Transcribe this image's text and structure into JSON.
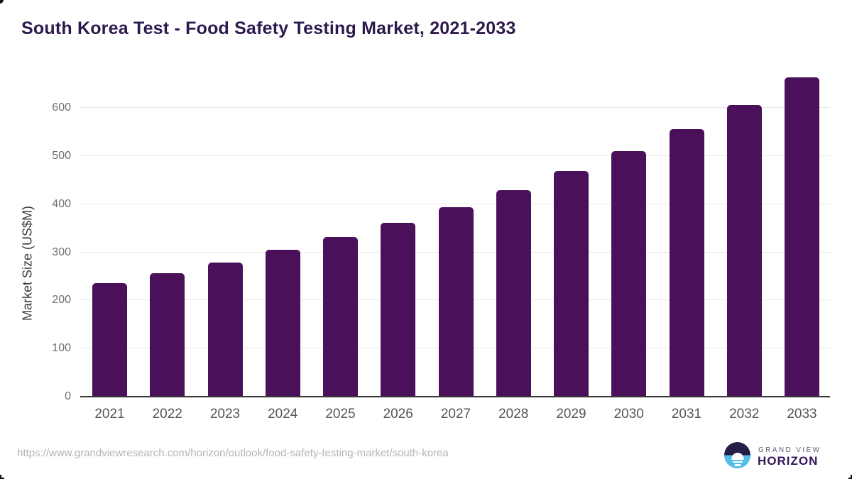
{
  "header": {
    "title": "South Korea Test - Food Safety Testing Market, 2021-2033"
  },
  "chart_data": {
    "type": "bar",
    "title": "South Korea Test - Food Safety Testing Market, 2021-2033",
    "categories": [
      "2021",
      "2022",
      "2023",
      "2024",
      "2025",
      "2026",
      "2027",
      "2028",
      "2029",
      "2030",
      "2031",
      "2032",
      "2033"
    ],
    "values": [
      234,
      255,
      278,
      304,
      330,
      360,
      392,
      427,
      467,
      509,
      555,
      605,
      662
    ],
    "xlabel": "",
    "ylabel": "Market Size (US$M)",
    "ylim": [
      0,
      680
    ],
    "yticks": [
      0,
      100,
      200,
      300,
      400,
      500,
      600
    ],
    "grid": "horizontal-only",
    "legend_position": "none",
    "bar_color": "#4a1059"
  },
  "footer": {
    "source_url": "https://www.grandviewresearch.com/horizon/outlook/food-safety-testing-market/south-korea",
    "logo": {
      "line1": "GRAND VIEW",
      "line2": "HORIZON"
    }
  },
  "colors": {
    "title_text": "#2e194e",
    "bar": "#4a1059",
    "axis_line": "#3a3a3a",
    "gridline": "#e8e8e8",
    "y_tick_text": "#6e6e6e",
    "x_tick_text": "#555555",
    "url_text": "#b3b3b3",
    "logo_navy": "#261d47",
    "logo_blue": "#54bdeb",
    "logo_gray_text": "#5d5d72",
    "logo_purple_text": "#321758"
  }
}
